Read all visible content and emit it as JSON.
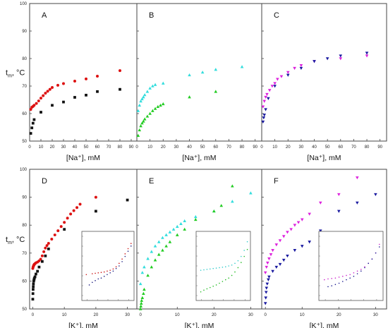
{
  "chart_data": [
    {
      "id": "A",
      "type": "scatter",
      "xlim": [
        0,
        95
      ],
      "ylim": [
        50,
        100
      ],
      "xticks": [
        0,
        10,
        20,
        30,
        40,
        50,
        60,
        70,
        80,
        90
      ],
      "yticks": [
        50,
        60,
        70,
        80,
        90,
        100
      ],
      "xlabel": "[Na⁺], mM",
      "ylabel": "tm, °C",
      "series": [
        {
          "marker": "circle",
          "color": "#dd1111",
          "x": [
            1,
            2,
            3,
            4,
            6,
            8,
            10,
            12,
            14,
            16,
            18,
            20,
            25,
            30,
            40,
            50,
            60,
            80
          ],
          "y": [
            61.5,
            62.3,
            62.6,
            63.0,
            63.7,
            64.6,
            65.6,
            66.5,
            67.4,
            68.1,
            68.8,
            69.5,
            70.3,
            70.9,
            71.8,
            72.6,
            73.6,
            75.6
          ]
        },
        {
          "marker": "square",
          "color": "#111111",
          "x": [
            1,
            2,
            3,
            4,
            10,
            20,
            30,
            40,
            50,
            60,
            80
          ],
          "y": [
            52.8,
            54.8,
            56.5,
            57.8,
            60.5,
            63.0,
            64.2,
            65.9,
            66.7,
            68.0,
            68.8
          ]
        }
      ]
    },
    {
      "id": "B",
      "type": "scatter",
      "xlim": [
        0,
        95
      ],
      "ylim": [
        50,
        100
      ],
      "xticks": [
        0,
        10,
        20,
        30,
        40,
        50,
        60,
        70,
        80,
        90
      ],
      "yticks": [
        50,
        60,
        70,
        80,
        90,
        100
      ],
      "xlabel": "[Na⁺], mM",
      "ylabel": "",
      "series": [
        {
          "marker": "triangle-up",
          "color": "#33dddd",
          "x": [
            1,
            2,
            3,
            4,
            5,
            6,
            8,
            10,
            12,
            14,
            20,
            40,
            50,
            60,
            80
          ],
          "y": [
            61,
            63,
            64.5,
            65.3,
            66,
            66.8,
            68,
            69.2,
            70,
            70.5,
            71,
            74,
            75,
            76,
            77
          ]
        },
        {
          "marker": "triangle-up",
          "color": "#22cc22",
          "x": [
            1,
            2,
            3,
            4,
            5,
            6,
            8,
            10,
            12,
            14,
            16,
            18,
            20,
            40,
            60
          ],
          "y": [
            52,
            54,
            55.5,
            56.5,
            57.2,
            58,
            59,
            60,
            61,
            61.8,
            62.5,
            63,
            63.5,
            66,
            68
          ]
        }
      ]
    },
    {
      "id": "C",
      "type": "scatter",
      "xlim": [
        0,
        95
      ],
      "ylim": [
        50,
        100
      ],
      "xticks": [
        0,
        10,
        20,
        30,
        40,
        50,
        60,
        70,
        80,
        90
      ],
      "yticks": [
        50,
        60,
        70,
        80,
        90,
        100
      ],
      "xlabel": "[Na⁺], mM",
      "ylabel": "",
      "series": [
        {
          "marker": "triangle-down",
          "color": "#dd22dd",
          "x": [
            1,
            2,
            3,
            4,
            6,
            8,
            10,
            12,
            15,
            20,
            25,
            30,
            40,
            60,
            80
          ],
          "y": [
            62.5,
            64.5,
            66,
            67,
            68.5,
            70,
            71,
            72.5,
            73.5,
            75,
            76.5,
            77.5,
            79,
            80,
            81
          ]
        },
        {
          "marker": "triangle-down",
          "color": "#1a1aa0",
          "x": [
            1,
            1.5,
            2,
            3,
            5,
            10,
            20,
            30,
            40,
            50,
            60,
            80
          ],
          "y": [
            57,
            58.5,
            59.5,
            61.5,
            65.5,
            70,
            74,
            76.5,
            79,
            80,
            81,
            82
          ]
        }
      ]
    },
    {
      "id": "D",
      "type": "scatter",
      "xlim": [
        -1,
        33
      ],
      "ylim": [
        50,
        100
      ],
      "xticks": [
        0,
        10,
        20,
        30
      ],
      "yticks": [
        50,
        60,
        70,
        80,
        90,
        100
      ],
      "xlabel": "[K⁺], mM",
      "ylabel": "tm, °C",
      "series": [
        {
          "marker": "circle",
          "color": "#dd1111",
          "x": [
            0,
            0.1,
            0.2,
            0.3,
            0.4,
            0.5,
            0.7,
            1,
            1.5,
            2,
            2.5,
            3,
            3.5,
            4,
            4.5,
            5,
            6,
            7,
            8,
            9,
            10,
            11,
            12,
            13,
            14,
            15,
            20
          ],
          "y": [
            64.5,
            65,
            65.3,
            65.6,
            65.8,
            66,
            66.2,
            66.5,
            66.8,
            67.2,
            67.8,
            69,
            70.5,
            71.8,
            72.7,
            73.5,
            75,
            76.5,
            78,
            79.5,
            81,
            82.5,
            84,
            85.2,
            86.3,
            87.5,
            90
          ]
        },
        {
          "marker": "square",
          "color": "#111111",
          "x": [
            0,
            0.05,
            0.1,
            0.15,
            0.2,
            0.3,
            0.4,
            0.5,
            0.7,
            1,
            1.5,
            2,
            3,
            4,
            5,
            10,
            20,
            30
          ],
          "y": [
            53.5,
            55.5,
            57,
            58,
            59,
            60,
            60.5,
            61,
            61.5,
            62.5,
            63.5,
            65,
            67,
            69,
            71.5,
            78.5,
            85,
            89
          ]
        }
      ],
      "inset": {
        "xlim": [
          -0.5,
          17
        ],
        "ylim": [
          20,
          100
        ],
        "series": [
          {
            "color": "#cc1111",
            "x": [
              1,
              3,
              4,
              5,
              6,
              7,
              8,
              9,
              10,
              11,
              12,
              13,
              14,
              15,
              16
            ],
            "y": [
              50,
              51,
              51.5,
              52,
              52.5,
              53,
              54,
              55,
              56.5,
              59,
              63,
              68,
              74,
              80,
              86
            ]
          },
          {
            "color": "#1a1a80",
            "x": [
              2,
              3,
              4,
              5,
              6,
              7,
              8,
              9,
              10,
              11,
              12,
              13,
              14,
              15,
              16
            ],
            "y": [
              38,
              41,
              43,
              45,
              46,
              48,
              50,
              52,
              54,
              57,
              60,
              65,
              71,
              77,
              83
            ]
          }
        ]
      }
    },
    {
      "id": "E",
      "type": "scatter",
      "xlim": [
        -1,
        33
      ],
      "ylim": [
        50,
        100
      ],
      "xticks": [
        0,
        10,
        20,
        30
      ],
      "yticks": [
        50,
        60,
        70,
        80,
        90,
        100
      ],
      "xlabel": "[K⁺], mM",
      "ylabel": "",
      "series": [
        {
          "marker": "triangle-up",
          "color": "#33dddd",
          "x": [
            0,
            0.5,
            1,
            2,
            3,
            4,
            5,
            6,
            7,
            8,
            9,
            10,
            11,
            12,
            15,
            20,
            25,
            30
          ],
          "y": [
            59,
            63,
            65,
            68,
            70.5,
            72.5,
            74,
            75.5,
            76.5,
            77.5,
            78.5,
            79.5,
            80.5,
            81.5,
            83,
            85,
            88.5,
            91.5
          ]
        },
        {
          "marker": "triangle-up",
          "color": "#22cc22",
          "x": [
            0,
            0.1,
            0.2,
            0.3,
            0.5,
            0.8,
            1,
            2,
            3,
            4,
            5,
            6,
            7,
            8,
            10,
            12,
            15,
            20,
            22,
            25
          ],
          "y": [
            50,
            51,
            52,
            53,
            54,
            55.5,
            57,
            62,
            65,
            67.5,
            69.5,
            71,
            72.5,
            74,
            76.5,
            78.5,
            82,
            85,
            87,
            94
          ]
        }
      ],
      "inset": {
        "xlim": [
          -0.5,
          17
        ],
        "ylim": [
          20,
          100
        ],
        "series": [
          {
            "color": "#33cccc",
            "x": [
              1,
              2,
              3,
              4,
              5,
              6,
              7,
              8,
              9,
              10,
              11,
              12,
              13,
              14,
              15,
              16
            ],
            "y": [
              55,
              55.5,
              56,
              56.5,
              57,
              57.5,
              58,
              58.5,
              59,
              60,
              61,
              63,
              66,
              71,
              78,
              88
            ]
          },
          {
            "color": "#22bb22",
            "x": [
              1,
              2,
              3,
              4,
              5,
              6,
              7,
              8,
              9,
              10,
              11,
              12,
              13,
              14,
              15,
              16
            ],
            "y": [
              30,
              32,
              33.5,
              35,
              36.5,
              38,
              40,
              42,
              44,
              46,
              49,
              53,
              58,
              64,
              71,
              79
            ]
          }
        ]
      }
    },
    {
      "id": "F",
      "type": "scatter",
      "xlim": [
        -1,
        33
      ],
      "ylim": [
        50,
        100
      ],
      "xticks": [
        0,
        10,
        20,
        30
      ],
      "yticks": [
        50,
        60,
        70,
        80,
        90,
        100
      ],
      "xlabel": "[K⁺], mM",
      "ylabel": "",
      "series": [
        {
          "marker": "triangle-down",
          "color": "#dd22dd",
          "x": [
            0,
            0.3,
            0.6,
            1,
            1.5,
            2,
            3,
            4,
            5,
            6,
            7,
            8,
            9,
            10,
            12,
            15,
            20,
            25
          ],
          "y": [
            63,
            65,
            66.5,
            68,
            69.5,
            71,
            73,
            74.5,
            76,
            77.5,
            78.5,
            80,
            81,
            82,
            84,
            88,
            91,
            97
          ]
        },
        {
          "marker": "triangle-down",
          "color": "#1a1aa0",
          "x": [
            0,
            0.1,
            0.2,
            0.3,
            0.5,
            0.8,
            1,
            2,
            3,
            4,
            5,
            6,
            8,
            10,
            12,
            15,
            20,
            25,
            30
          ],
          "y": [
            52,
            54,
            56,
            57.5,
            59,
            60.5,
            61.5,
            63.5,
            65,
            66,
            67.5,
            69,
            71,
            72.5,
            74,
            78,
            85,
            88,
            91
          ]
        }
      ],
      "inset": {
        "xlim": [
          -0.5,
          17
        ],
        "ylim": [
          20,
          100
        ],
        "series": [
          {
            "color": "#cc22cc",
            "x": [
              1,
              2,
              3,
              4,
              5,
              6,
              7,
              8,
              9,
              10,
              11,
              12,
              13,
              14,
              15,
              16
            ],
            "y": [
              44,
              45,
              45.5,
              46,
              47,
              48,
              49,
              50,
              52,
              54,
              56,
              59,
              63,
              68,
              75,
              85
            ]
          },
          {
            "color": "#1a1a90",
            "x": [
              2,
              3,
              4,
              5,
              6,
              7,
              8,
              9,
              10,
              11,
              12,
              13,
              14,
              15,
              16
            ],
            "y": [
              36,
              37,
              38.5,
              40,
              42,
              44,
              46,
              48,
              51,
              54,
              58,
              63,
              68,
              75,
              82
            ]
          }
        ]
      }
    }
  ]
}
